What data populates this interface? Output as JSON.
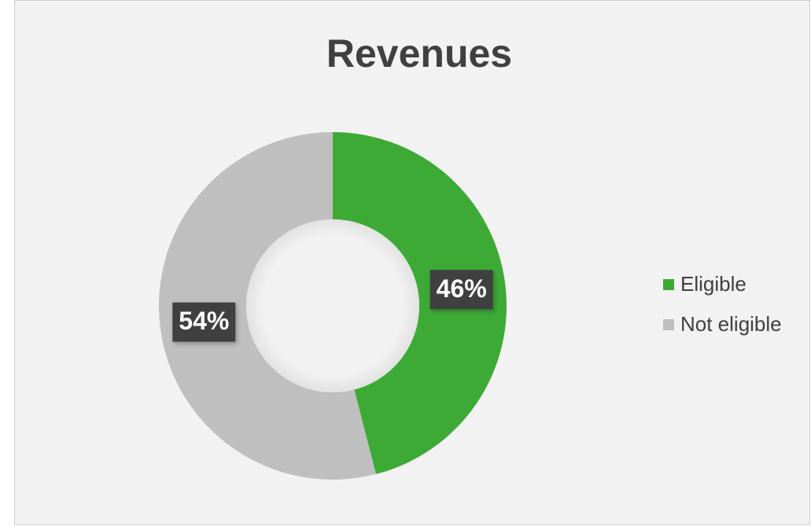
{
  "chart_data": {
    "type": "donut",
    "title": "Revenues",
    "categories": [
      "Eligible",
      "Not eligible"
    ],
    "values": [
      46,
      54
    ],
    "value_labels": [
      "46%",
      "54%"
    ],
    "colors": [
      "#3daa36",
      "#bfbfbf"
    ],
    "legend": "right"
  }
}
